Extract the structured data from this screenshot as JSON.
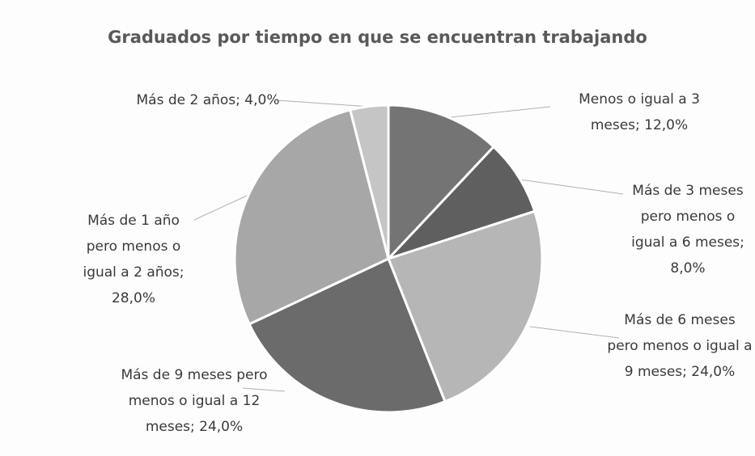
{
  "chart_data": {
    "type": "pie",
    "title": "Graduados por tiempo en que se encuentran trabajando",
    "values": [
      12,
      8,
      24,
      24,
      28,
      4
    ],
    "value_labels": [
      "Menos o igual a 3 meses; 12,0%",
      "Más de 3 meses pero menos o igual a 6 meses; 8,0%",
      "Más de 6 meses pero menos o igual a 9 meses; 24,0%",
      "Más de 9 meses pero menos o igual a 12 meses; 24,0%",
      "Más de 1 año pero menos o igual a 2 años; 28,0%",
      "Más de 2 años; 4,0%"
    ],
    "colors": [
      "#747474",
      "#5f5f5f",
      "#b6b6b6",
      "#6b6b6b",
      "#a7a7a7",
      "#c5c5c5"
    ]
  }
}
